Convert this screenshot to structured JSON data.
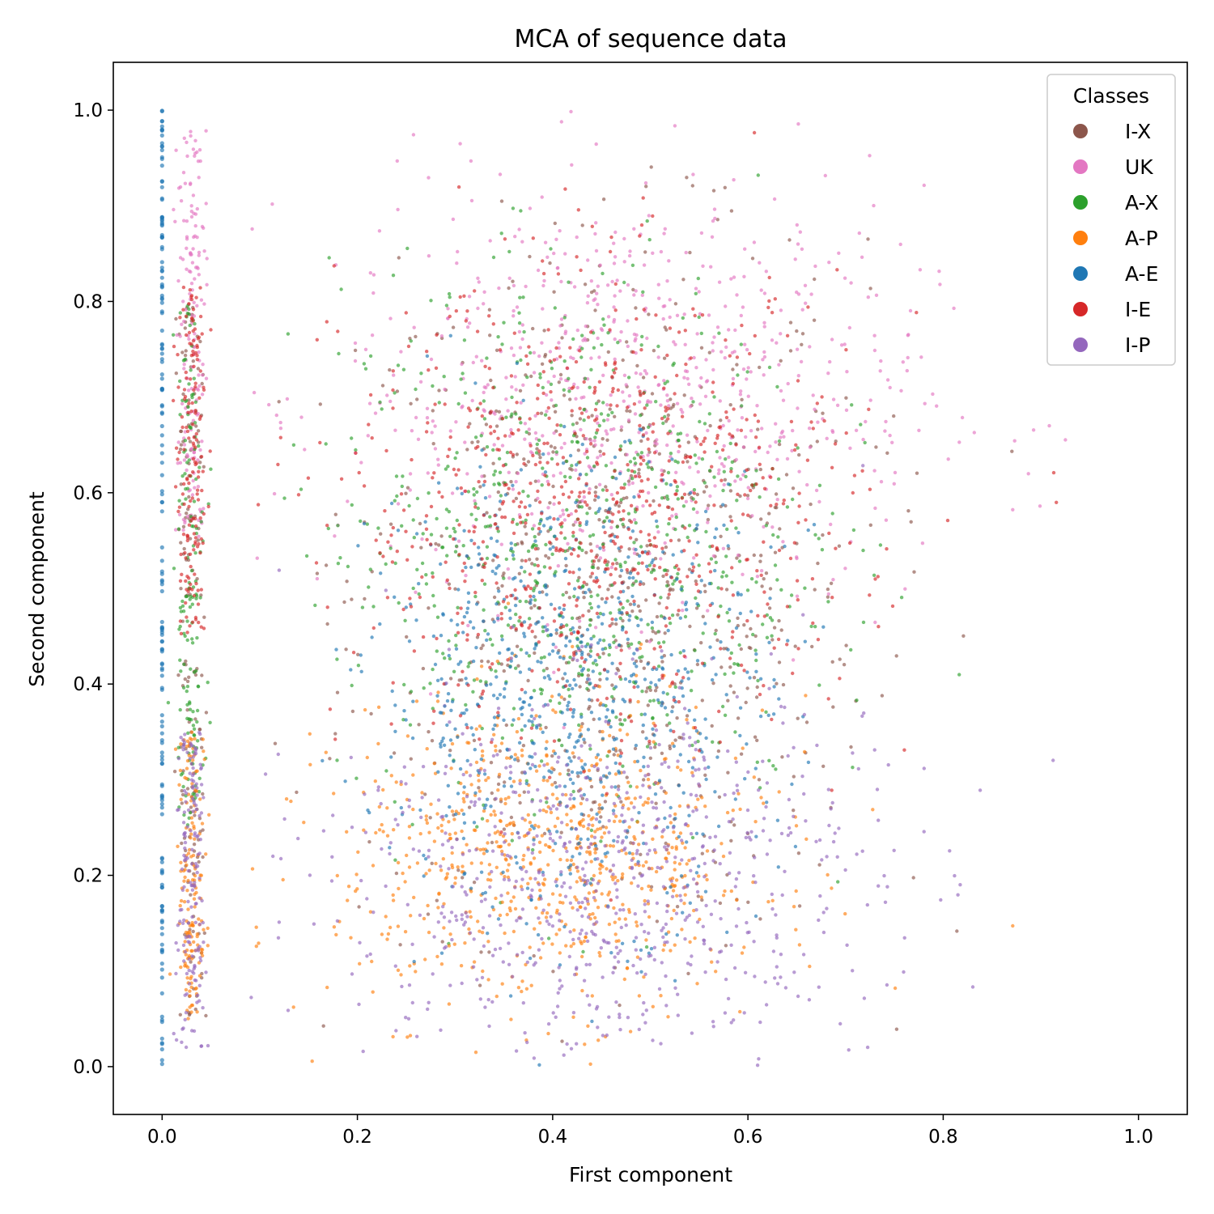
{
  "chart_data": {
    "type": "scatter",
    "title": "MCA of sequence data",
    "xlabel": "First component",
    "ylabel": "Second component",
    "xlim": [
      -0.05,
      1.05
    ],
    "ylim": [
      -0.05,
      1.05
    ],
    "x_ticks": [
      "0.0",
      "0.2",
      "0.4",
      "0.6",
      "0.8",
      "1.0"
    ],
    "y_ticks": [
      "0.0",
      "0.2",
      "0.4",
      "0.6",
      "0.8",
      "1.0"
    ],
    "grid": false,
    "legend": {
      "title": "Classes",
      "placement": "top-right",
      "entries": [
        "I-X",
        "UK",
        "A-X",
        "A-P",
        "A-E",
        "I-E",
        "I-P"
      ]
    },
    "series": [
      {
        "name": "I-X",
        "color": "#8c564b",
        "column_x": 0.03,
        "column_y_range": [
          0.05,
          0.8
        ],
        "cloud_center": [
          0.46,
          0.5
        ],
        "cloud_spread": [
          0.13,
          0.18
        ]
      },
      {
        "name": "UK",
        "color": "#e377c2",
        "column_x": 0.03,
        "column_y_range": [
          0.55,
          0.98
        ],
        "cloud_center": [
          0.48,
          0.7
        ],
        "cloud_spread": [
          0.15,
          0.11
        ]
      },
      {
        "name": "A-X",
        "color": "#2ca02c",
        "column_x": 0.03,
        "column_y_range": [
          0.25,
          0.8
        ],
        "cloud_center": [
          0.42,
          0.55
        ],
        "cloud_spread": [
          0.12,
          0.14
        ]
      },
      {
        "name": "A-P",
        "color": "#ff7f0e",
        "column_x": 0.03,
        "column_y_range": [
          0.05,
          0.35
        ],
        "cloud_center": [
          0.4,
          0.22
        ],
        "cloud_spread": [
          0.11,
          0.08
        ]
      },
      {
        "name": "A-E",
        "color": "#1f77b4",
        "column_x": 0.0,
        "column_y_range": [
          0.0,
          1.0
        ],
        "cloud_center": [
          0.42,
          0.4
        ],
        "cloud_spread": [
          0.1,
          0.12
        ]
      },
      {
        "name": "I-E",
        "color": "#d62728",
        "column_x": 0.03,
        "column_y_range": [
          0.45,
          0.82
        ],
        "cloud_center": [
          0.45,
          0.58
        ],
        "cloud_spread": [
          0.13,
          0.12
        ]
      },
      {
        "name": "I-P",
        "color": "#9467bd",
        "column_x": 0.03,
        "column_y_range": [
          0.02,
          0.35
        ],
        "cloud_center": [
          0.45,
          0.2
        ],
        "cloud_spread": [
          0.14,
          0.1
        ]
      }
    ]
  }
}
